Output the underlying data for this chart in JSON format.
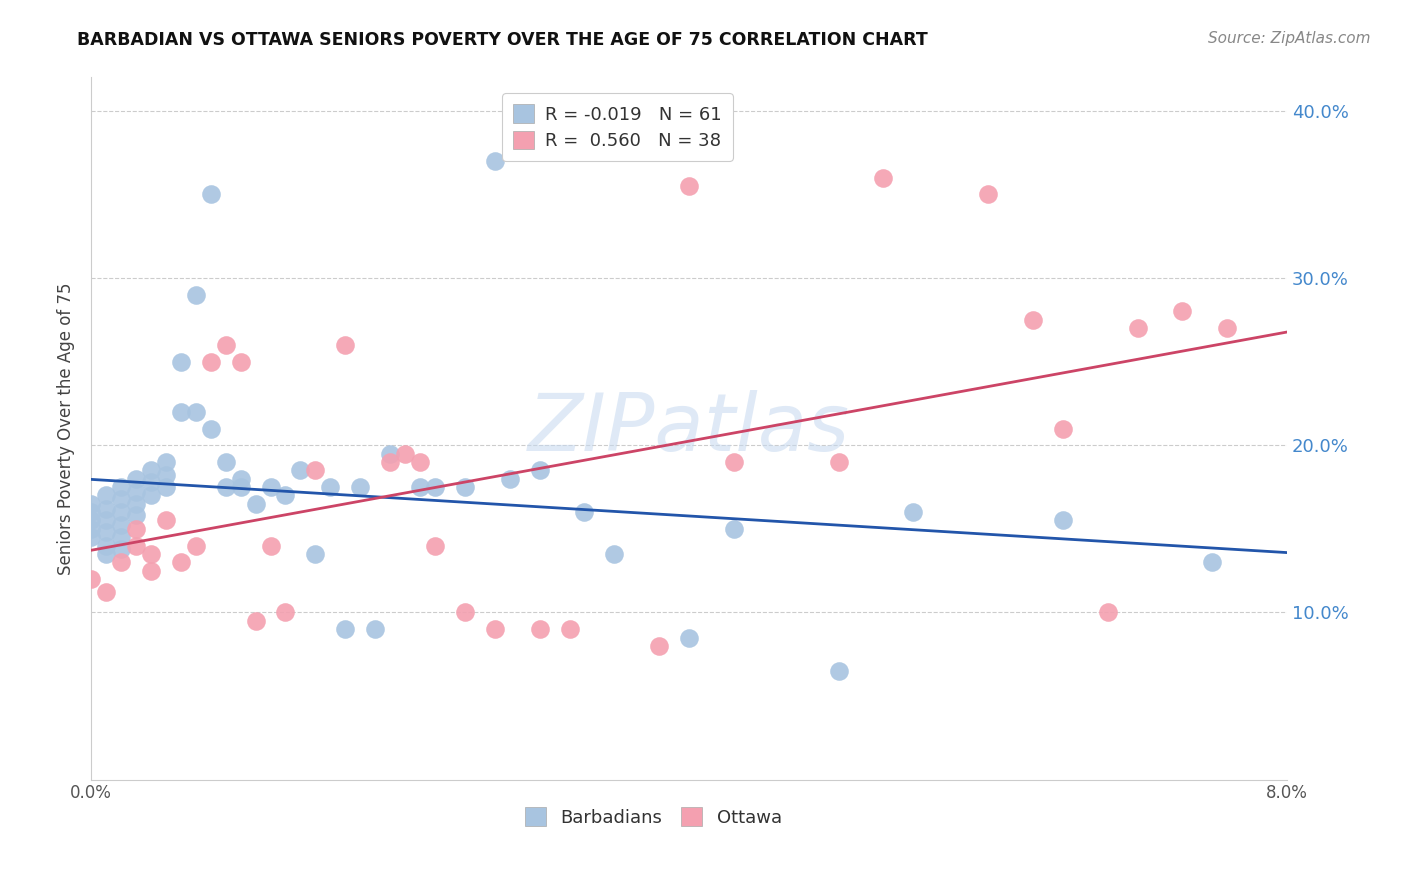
{
  "title": "BARBADIAN VS OTTAWA SENIORS POVERTY OVER THE AGE OF 75 CORRELATION CHART",
  "source": "Source: ZipAtlas.com",
  "ylabel": "Seniors Poverty Over the Age of 75",
  "xlim": [
    0.0,
    0.08
  ],
  "ylim": [
    0.0,
    0.42
  ],
  "barbadians_R": -0.019,
  "barbadians_N": 61,
  "ottawa_R": 0.56,
  "ottawa_N": 38,
  "barbadian_color": "#a8c4e0",
  "ottawa_color": "#f4a0b0",
  "trend_blue": "#2255aa",
  "trend_pink": "#cc4466",
  "watermark_color": "#c5d8ef",
  "grid_color": "#cccccc",
  "right_tick_color": "#4488cc",
  "barbadians_x": [
    0.0,
    0.0,
    0.0,
    0.0,
    0.0,
    0.001,
    0.001,
    0.001,
    0.001,
    0.001,
    0.001,
    0.002,
    0.002,
    0.002,
    0.002,
    0.002,
    0.002,
    0.003,
    0.003,
    0.003,
    0.003,
    0.004,
    0.004,
    0.004,
    0.005,
    0.005,
    0.005,
    0.006,
    0.006,
    0.007,
    0.007,
    0.008,
    0.008,
    0.009,
    0.009,
    0.01,
    0.01,
    0.011,
    0.012,
    0.013,
    0.014,
    0.015,
    0.016,
    0.017,
    0.018,
    0.019,
    0.02,
    0.022,
    0.023,
    0.025,
    0.027,
    0.028,
    0.03,
    0.033,
    0.035,
    0.04,
    0.043,
    0.05,
    0.055,
    0.065,
    0.075
  ],
  "barbadians_y": [
    0.165,
    0.16,
    0.155,
    0.15,
    0.145,
    0.17,
    0.162,
    0.155,
    0.148,
    0.14,
    0.135,
    0.175,
    0.168,
    0.16,
    0.152,
    0.145,
    0.138,
    0.18,
    0.172,
    0.165,
    0.158,
    0.185,
    0.178,
    0.17,
    0.19,
    0.182,
    0.175,
    0.25,
    0.22,
    0.29,
    0.22,
    0.35,
    0.21,
    0.19,
    0.175,
    0.18,
    0.175,
    0.165,
    0.175,
    0.17,
    0.185,
    0.135,
    0.175,
    0.09,
    0.175,
    0.09,
    0.195,
    0.175,
    0.175,
    0.175,
    0.37,
    0.18,
    0.185,
    0.16,
    0.135,
    0.085,
    0.15,
    0.065,
    0.16,
    0.155,
    0.13
  ],
  "ottawa_x": [
    0.0,
    0.001,
    0.002,
    0.003,
    0.003,
    0.004,
    0.004,
    0.005,
    0.006,
    0.007,
    0.008,
    0.009,
    0.01,
    0.011,
    0.012,
    0.013,
    0.015,
    0.017,
    0.02,
    0.021,
    0.022,
    0.023,
    0.025,
    0.027,
    0.03,
    0.032,
    0.038,
    0.04,
    0.043,
    0.05,
    0.053,
    0.06,
    0.063,
    0.065,
    0.068,
    0.07,
    0.073,
    0.076
  ],
  "ottawa_y": [
    0.12,
    0.112,
    0.13,
    0.14,
    0.15,
    0.125,
    0.135,
    0.155,
    0.13,
    0.14,
    0.25,
    0.26,
    0.25,
    0.095,
    0.14,
    0.1,
    0.185,
    0.26,
    0.19,
    0.195,
    0.19,
    0.14,
    0.1,
    0.09,
    0.09,
    0.09,
    0.08,
    0.355,
    0.19,
    0.19,
    0.36,
    0.35,
    0.275,
    0.21,
    0.1,
    0.27,
    0.28,
    0.27
  ]
}
